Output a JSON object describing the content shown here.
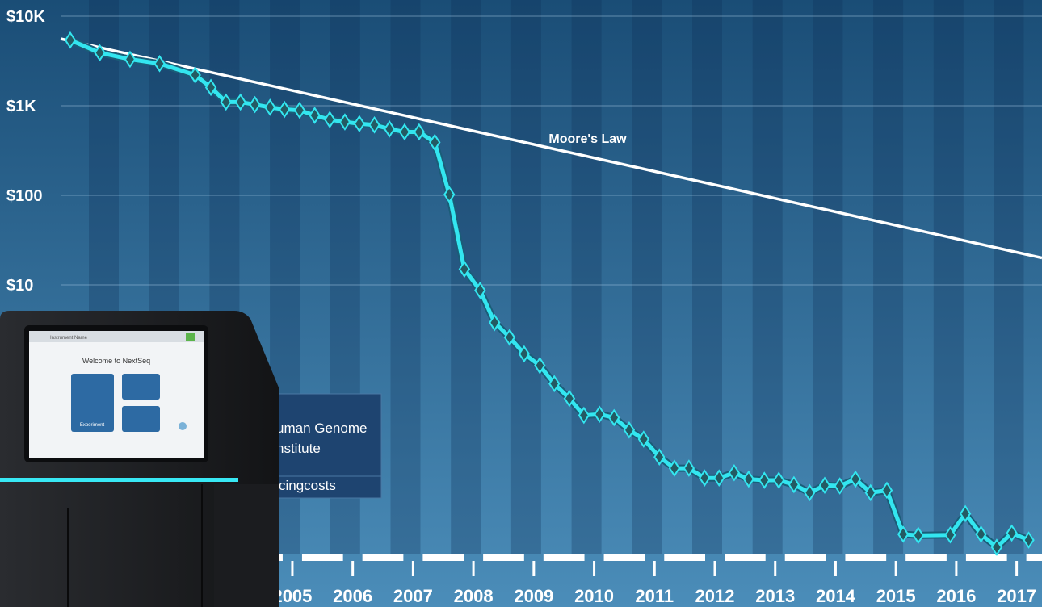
{
  "chart_data": {
    "type": "line",
    "annotations": [
      "uman Genome",
      "nstitute",
      "cingcosts"
    ],
    "series": [
      {
        "name": "Moore's Law",
        "color": "#ffffff",
        "markers": false,
        "x": [
          2001.16,
          2017.42
        ],
        "values": [
          5600,
          20
        ]
      },
      {
        "name": null,
        "color": "#33e6f0",
        "markers": true,
        "x": [
          2001.32,
          2001.81,
          2002.31,
          2002.8,
          2003.39,
          2003.65,
          2003.9,
          2004.14,
          2004.38,
          2004.63,
          2004.87,
          2005.12,
          2005.37,
          2005.62,
          2005.87,
          2006.11,
          2006.36,
          2006.61,
          2006.86,
          2007.1,
          2007.36,
          2007.6,
          2007.85,
          2008.11,
          2008.35,
          2008.6,
          2008.84,
          2009.1,
          2009.34,
          2009.59,
          2009.83,
          2010.09,
          2010.33,
          2010.58,
          2010.82,
          2011.08,
          2011.33,
          2011.57,
          2011.83,
          2012.07,
          2012.32,
          2012.56,
          2012.82,
          2013.06,
          2013.31,
          2013.57,
          2013.82,
          2014.07,
          2014.33,
          2014.58,
          2014.85,
          2015.12,
          2015.37,
          2015.9,
          2016.15,
          2016.41,
          2016.67,
          2016.92,
          2017.2
        ],
        "values": [
          5400,
          3900,
          3300,
          2950,
          2200,
          1600,
          1100,
          1100,
          1030,
          960,
          910,
          890,
          780,
          700,
          660,
          630,
          610,
          550,
          510,
          510,
          390,
          102,
          15,
          8.7,
          3.8,
          2.6,
          1.7,
          1.26,
          0.79,
          0.54,
          0.35,
          0.36,
          0.33,
          0.24,
          0.19,
          0.12,
          0.09,
          0.09,
          0.07,
          0.07,
          0.08,
          0.068,
          0.066,
          0.066,
          0.059,
          0.048,
          0.058,
          0.057,
          0.068,
          0.048,
          0.051,
          0.0165,
          0.016,
          0.0162,
          0.028,
          0.0165,
          0.0118,
          0.017,
          0.0142
        ]
      }
    ],
    "xlim": [
      2001.16,
      2017.42
    ],
    "xticks": [
      2005,
      2006,
      2007,
      2008,
      2009,
      2010,
      2011,
      2012,
      2013,
      2014,
      2015,
      2016,
      2017
    ],
    "ylim": [
      0.01,
      10000
    ],
    "yticks": [
      {
        "value": 10000,
        "label": "$10K"
      },
      {
        "value": 1000,
        "label": "$1K"
      },
      {
        "value": 100,
        "label": "$100"
      },
      {
        "value": 10,
        "label": "$10"
      }
    ],
    "log_y": true,
    "grid": true
  },
  "device": {
    "header": "Instrument Name",
    "screen_title": "Welcome to NextSeq",
    "button": "Experiment"
  }
}
